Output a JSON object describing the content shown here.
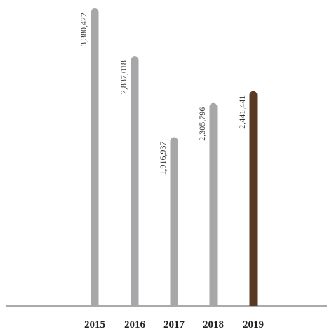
{
  "chart_data": {
    "type": "bar",
    "orientation": "vertical",
    "title": "",
    "xlabel": "",
    "ylabel": "",
    "categories": [
      "2015",
      "2016",
      "2017",
      "2018",
      "2019"
    ],
    "values": [
      3380422,
      2837018,
      1916937,
      2305796,
      2441441
    ],
    "value_labels": [
      "3,380,422",
      "2,837,018",
      "1,916,937",
      "2,305,796",
      "2,441,441"
    ],
    "ylim": [
      0,
      3500000
    ],
    "grid": false,
    "legend": "none",
    "colors": {
      "default_bar": "#a7a7a9",
      "highlight_bar": "#5a3a23",
      "axis": "#555555"
    },
    "highlight_category": "2019"
  }
}
